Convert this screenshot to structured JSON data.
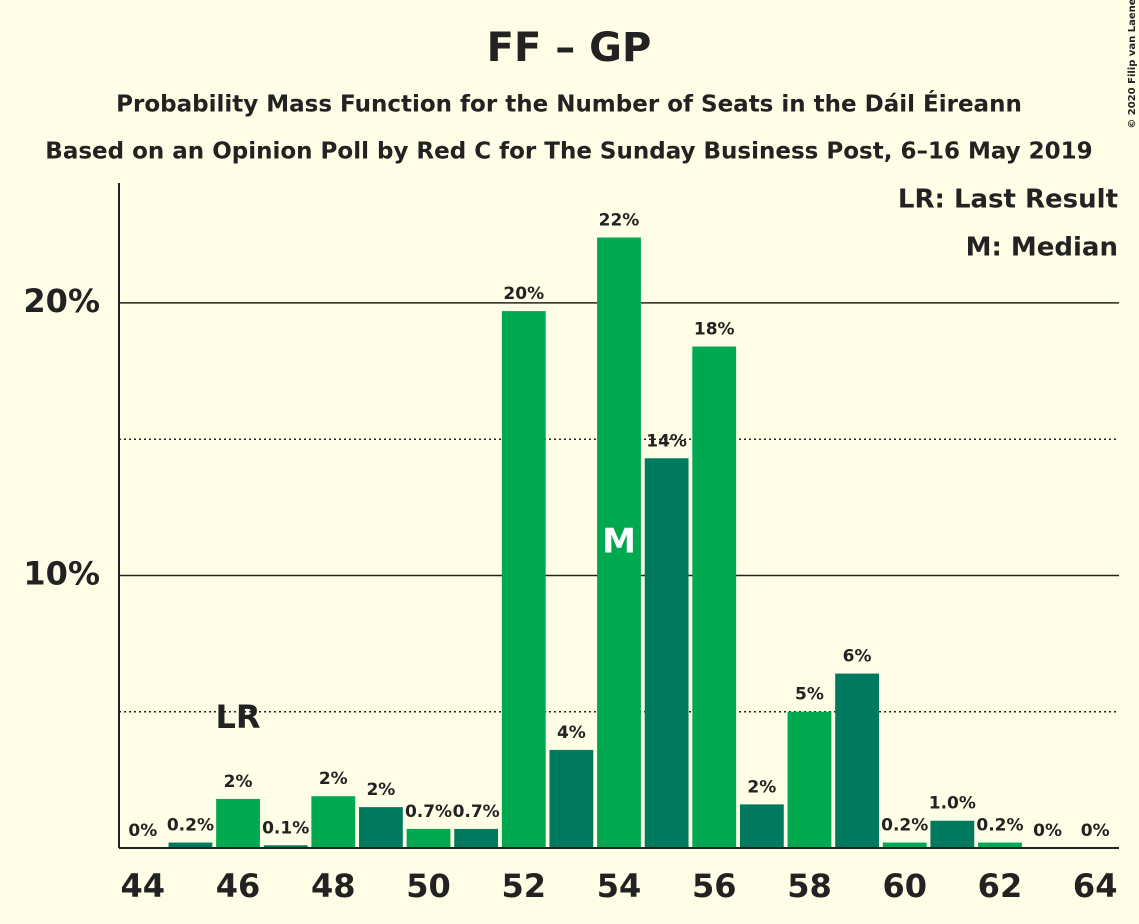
{
  "chart_data": {
    "type": "bar",
    "title": "FF – GP",
    "subtitle": "Probability Mass Function for the Number of Seats in the Dáil Éireann",
    "subtitle2": "Based on an Opinion Poll by Red C for The Sunday Business Post, 6–16 May 2019",
    "copyright": "© 2020 Filip van Laenen",
    "legend": [
      "LR: Last Result",
      "M: Median"
    ],
    "annotations": [
      {
        "x": 46,
        "text": "LR"
      },
      {
        "x": 54,
        "text": "M"
      }
    ],
    "x": [
      44,
      45,
      46,
      47,
      48,
      49,
      50,
      51,
      52,
      53,
      54,
      55,
      56,
      57,
      58,
      59,
      60,
      61,
      62,
      63,
      64
    ],
    "values": [
      0,
      0.2,
      1.8,
      0.1,
      1.9,
      1.5,
      0.7,
      0.7,
      19.7,
      3.6,
      22.4,
      14.3,
      18.4,
      1.6,
      5.0,
      6.4,
      0.2,
      1.0,
      0.2,
      0,
      0
    ],
    "value_labels": [
      "0%",
      "0.2%",
      "2%",
      "0.1%",
      "2%",
      "2%",
      "0.7%",
      "0.7%",
      "20%",
      "4%",
      "22%",
      "14%",
      "18%",
      "2%",
      "5%",
      "6%",
      "0.2%",
      "1.0%",
      "0.2%",
      "0%",
      "0%"
    ],
    "colors": [
      "#007a5e",
      "#007a5e",
      "#00a84f",
      "#007a5e",
      "#00a84f",
      "#007a5e",
      "#00a84f",
      "#007a5e",
      "#00a84f",
      "#007a5e",
      "#00a84f",
      "#007a5e",
      "#00a84f",
      "#007a5e",
      "#00a84f",
      "#007a5e",
      "#00a84f",
      "#007a5e",
      "#00a84f",
      "#007a5e",
      "#00a84f"
    ],
    "xlim": [
      43.5,
      64.5
    ],
    "xticks": [
      44,
      46,
      48,
      50,
      52,
      54,
      56,
      58,
      60,
      62,
      64
    ],
    "ylim": [
      0,
      24.4
    ],
    "yticks": [
      {
        "value": 10,
        "label": "10%"
      },
      {
        "value": 20,
        "label": "20%"
      }
    ],
    "minor_yticks": [
      5,
      15
    ],
    "grid": true
  }
}
